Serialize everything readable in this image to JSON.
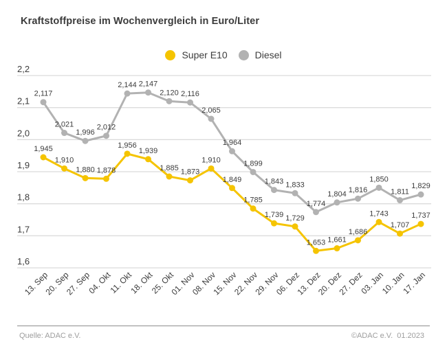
{
  "title": "Kraftstoffpreise im Wochenvergleich in Euro/Liter",
  "footer": {
    "source": "Quelle: ADAC e.V.",
    "copyright": "©ADAC e.V.  01.2023"
  },
  "colors": {
    "super_e10_yellow": "#F5C400",
    "diesel_gray": "#B2B2B2",
    "grid_line": "#DBDBDB",
    "text_dark": "#3C3C3C",
    "text_muted": "#9D9D9D",
    "divider": "#8C8C8C"
  },
  "chart_data": {
    "type": "line",
    "title": "Kraftstoffpreise im Wochenvergleich in Euro/Liter",
    "xlabel": "",
    "ylabel": "Euro/Liter",
    "legend_position": "top-center",
    "grid": "horizontal",
    "decimal_separator": ",",
    "categories": [
      "13. Sep",
      "20. Sep",
      "27. Sep",
      "04. Okt",
      "11. Okt",
      "18. Okt",
      "25. Okt",
      "01. Nov",
      "08. Nov",
      "15. Nov",
      "22. Nov",
      "29. Nov",
      "06. Dez",
      "13. Dez",
      "20. Dez",
      "27. Dez",
      "03. Jan",
      "10. Jan",
      "17. Jan"
    ],
    "series": [
      {
        "name": "Super E10",
        "color": "#F5C400",
        "values": [
          1.945,
          1.91,
          1.88,
          1.878,
          1.956,
          1.939,
          1.885,
          1.873,
          1.91,
          1.849,
          1.785,
          1.739,
          1.729,
          1.653,
          1.661,
          1.686,
          1.743,
          1.707,
          1.737
        ]
      },
      {
        "name": "Diesel",
        "color": "#B2B2B2",
        "values": [
          2.117,
          2.021,
          1.996,
          2.012,
          2.144,
          2.147,
          2.12,
          2.116,
          2.065,
          1.964,
          1.899,
          1.843,
          1.833,
          1.774,
          1.804,
          1.816,
          1.85,
          1.811,
          1.829
        ]
      }
    ],
    "y_axis": {
      "min": 1.6,
      "max": 2.2,
      "tick_values": [
        2.2,
        2.1,
        2.0,
        1.9,
        1.8,
        1.7,
        1.6
      ],
      "tick_labels": [
        "2,2",
        "2,1",
        "2,0",
        "1,9",
        "1,8",
        "1,7",
        "1,6"
      ]
    }
  }
}
